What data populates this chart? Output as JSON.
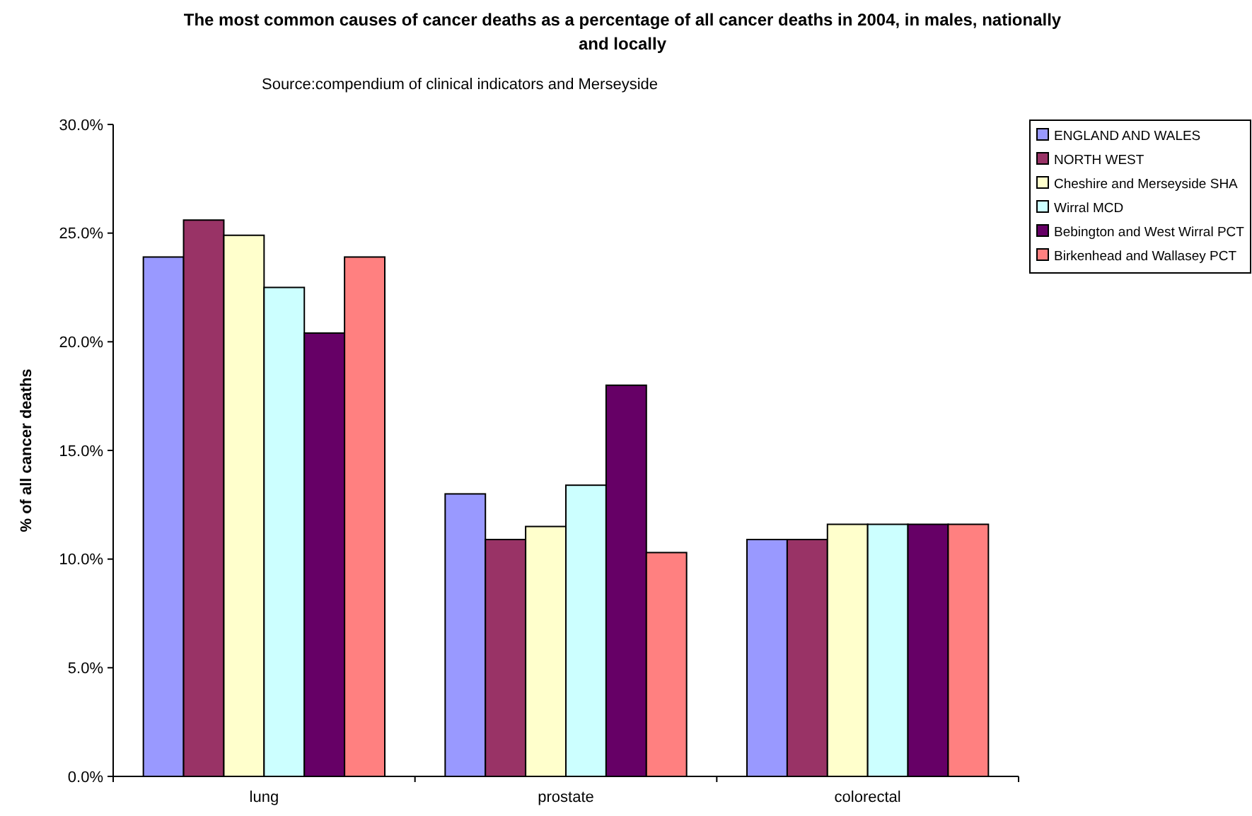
{
  "chart_data": {
    "type": "bar",
    "title": "The most common causes of cancer deaths as a percentage of all cancer deaths in 2004, in males, nationally and locally",
    "subtitle": "Source:compendium of clinical indicators and Merseyside",
    "ylabel": "% of all cancer deaths",
    "categories": [
      "lung",
      "prostate",
      "colorectal"
    ],
    "series": [
      {
        "name": "ENGLAND AND WALES",
        "color": "#9999ff",
        "values": [
          23.9,
          13.0,
          10.9
        ]
      },
      {
        "name": "NORTH WEST",
        "color": "#993366",
        "values": [
          25.6,
          10.9,
          10.9
        ]
      },
      {
        "name": "Cheshire and Merseyside SHA",
        "color": "#ffffcc",
        "values": [
          24.9,
          11.5,
          11.6
        ]
      },
      {
        "name": "Wirral MCD",
        "color": "#ccffff",
        "values": [
          22.5,
          13.4,
          11.6
        ]
      },
      {
        "name": "Bebington and West Wirral PCT",
        "color": "#660066",
        "values": [
          20.4,
          18.0,
          11.6
        ]
      },
      {
        "name": "Birkenhead and Wallasey PCT",
        "color": "#ff8080",
        "values": [
          23.9,
          10.3,
          11.6
        ]
      }
    ],
    "ylim": [
      0,
      30
    ],
    "yticks": [
      {
        "value": 0,
        "label": "0.0%"
      },
      {
        "value": 5,
        "label": "5.0%"
      },
      {
        "value": 10,
        "label": "10.0%"
      },
      {
        "value": 15,
        "label": "15.0%"
      },
      {
        "value": 20,
        "label": "20.0%"
      },
      {
        "value": 25,
        "label": "25.0%"
      },
      {
        "value": 30,
        "label": "30.0%"
      }
    ],
    "grid": false,
    "legend": "top right"
  }
}
